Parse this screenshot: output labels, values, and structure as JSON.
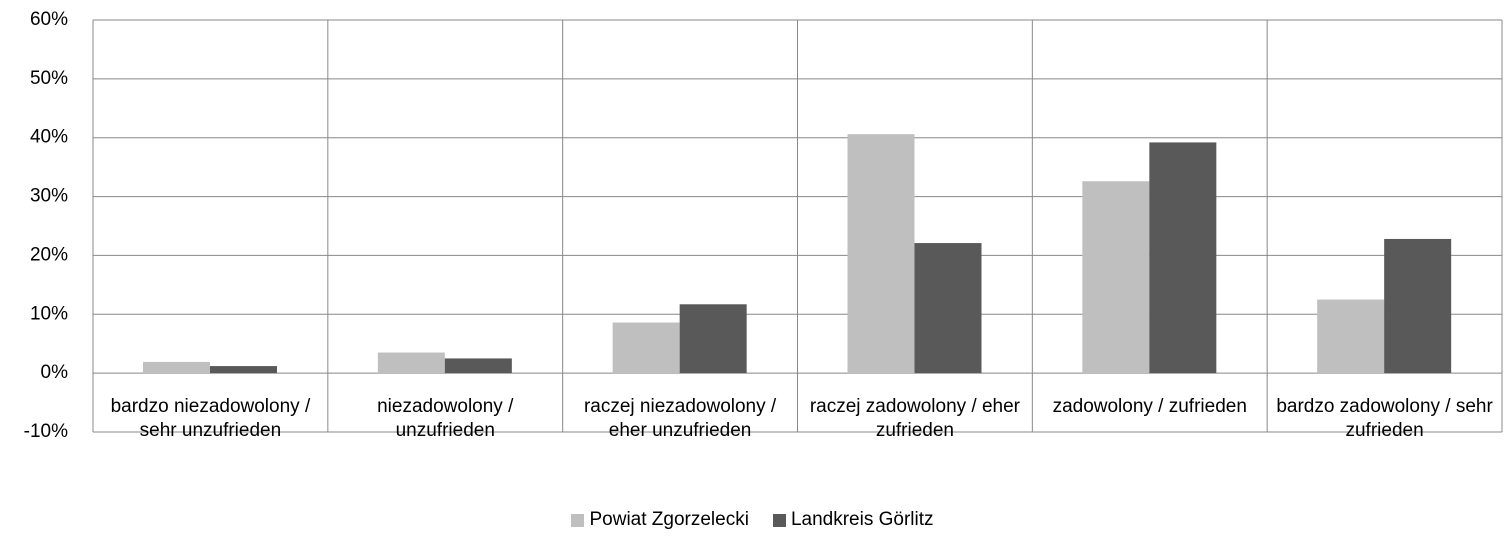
{
  "chart_data": {
    "type": "bar",
    "categories": [
      "bardzo niezadowolony / sehr unzufrieden",
      "niezadowolony / unzufrieden",
      "raczej niezadowolony / eher unzufrieden",
      "raczej zadowolony / eher zufrieden",
      "zadowolony / zufrieden",
      "bardzo zadowolony / sehr zufrieden"
    ],
    "series": [
      {
        "name": "Powiat Zgorzelecki",
        "color": "#bfbfbf",
        "values": [
          1.9,
          3.5,
          8.6,
          40.6,
          32.6,
          12.5
        ]
      },
      {
        "name": "Landkreis Görlitz",
        "color": "#595959",
        "values": [
          1.2,
          2.5,
          11.7,
          22.1,
          39.2,
          22.8
        ]
      }
    ],
    "ylim": [
      -10,
      60
    ],
    "yticks": [
      {
        "value": -10,
        "label": "-10%"
      },
      {
        "value": 0,
        "label": "0%"
      },
      {
        "value": 10,
        "label": "10%"
      },
      {
        "value": 20,
        "label": "20%"
      },
      {
        "value": 30,
        "label": "30%"
      },
      {
        "value": 40,
        "label": "40%"
      },
      {
        "value": 50,
        "label": "50%"
      },
      {
        "value": 60,
        "label": "60%"
      }
    ],
    "grid": true,
    "legend": "bottom"
  }
}
